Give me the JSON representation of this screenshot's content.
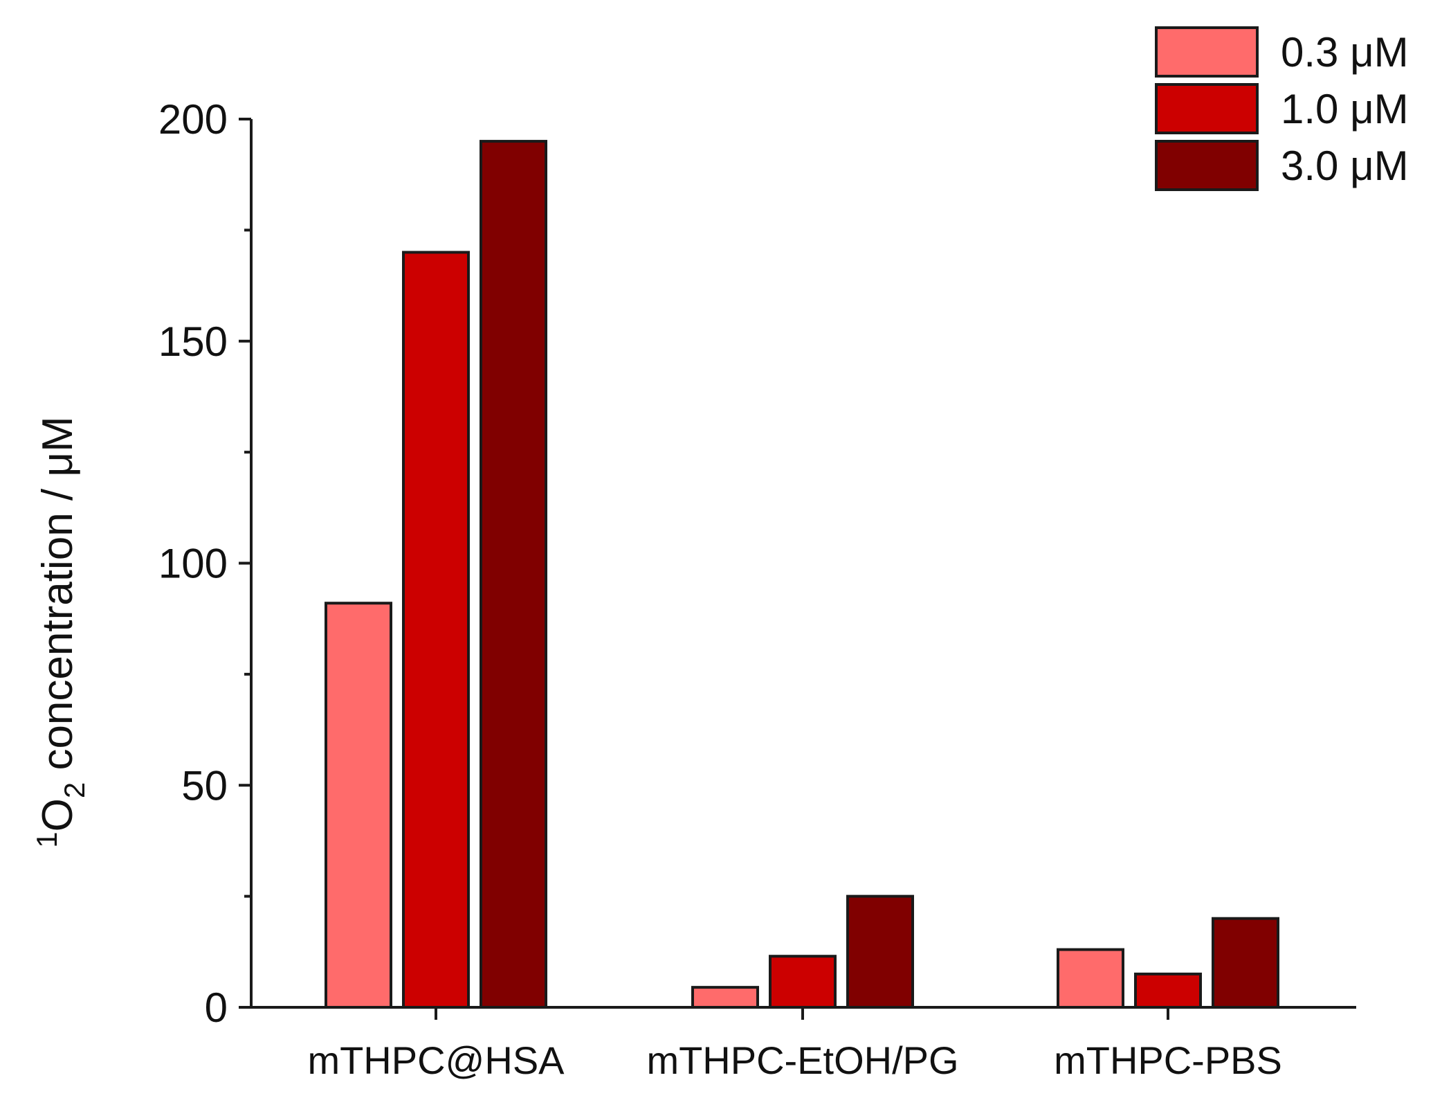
{
  "chart_data": {
    "type": "bar",
    "categories": [
      "mTHPC@HSA",
      "mTHPC-EtOH/PG",
      "mTHPC-PBS"
    ],
    "series": [
      {
        "name": "0.3 μM",
        "color": "#ff6b6b",
        "values": [
          91,
          4.5,
          13
        ]
      },
      {
        "name": "1.0 μM",
        "color": "#cc0000",
        "values": [
          170,
          11.5,
          7.5
        ]
      },
      {
        "name": "3.0 μM",
        "color": "#800000",
        "values": [
          195,
          25,
          20
        ]
      }
    ],
    "ylabel": {
      "superscript": "1",
      "main": "O",
      "subscript": "2",
      "rest": " concentration / μM"
    },
    "ylim": [
      0,
      200
    ],
    "yticks": [
      0,
      50,
      100,
      150,
      200
    ],
    "yticks_labels": [
      "0",
      "50",
      "100",
      "150",
      "200"
    ],
    "grid": false,
    "legend_position": "top-right"
  }
}
